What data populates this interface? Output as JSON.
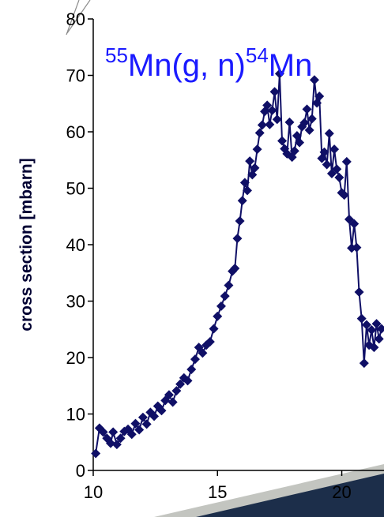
{
  "chart_data": {
    "type": "line",
    "title_parts": {
      "a_mass": "55",
      "a_body": "Mn(g, n)",
      "b_mass": "54",
      "b_body": "Mn"
    },
    "xlabel": "",
    "ylabel": "cross section [mbarn]",
    "xlim": [
      10,
      21.7
    ],
    "ylim": [
      0,
      80
    ],
    "x_ticks": [
      "10",
      "15",
      "20"
    ],
    "y_ticks": [
      "0",
      "10",
      "20",
      "30",
      "40",
      "50",
      "60",
      "70",
      "80"
    ],
    "grid": false,
    "legend": "none",
    "colors": {
      "series": "#0f0f66",
      "title": "#1a1aff",
      "decor_dark": "#1c2e4a",
      "decor_light": "#c3c5c0"
    },
    "series": [
      {
        "marker": "diamond",
        "x": [
          10.1,
          10.25,
          10.4,
          10.55,
          10.7,
          10.8,
          10.95,
          11.1,
          11.25,
          11.4,
          11.55,
          11.7,
          11.85,
          12.0,
          12.15,
          12.3,
          12.45,
          12.6,
          12.75,
          12.9,
          13.05,
          13.2,
          13.35,
          13.5,
          13.65,
          13.8,
          13.95,
          14.1,
          14.25,
          14.4,
          14.55,
          14.7,
          14.85,
          15.0,
          15.15,
          15.3,
          15.45,
          15.6,
          15.7,
          15.8,
          15.9,
          16.0,
          16.1,
          16.2,
          16.3,
          16.4,
          16.5,
          16.6,
          16.7,
          16.8,
          16.9,
          17.0,
          17.1,
          17.2,
          17.3,
          17.4,
          17.5,
          17.6,
          17.7,
          17.8,
          17.9,
          18.0,
          18.1,
          18.2,
          18.3,
          18.4,
          18.5,
          18.6,
          18.7,
          18.8,
          18.9,
          19.0,
          19.1,
          19.2,
          19.3,
          19.4,
          19.5,
          19.6,
          19.7,
          19.8,
          19.9,
          20.0,
          20.1,
          20.2,
          20.3,
          20.4,
          20.5,
          20.6,
          20.7,
          20.8,
          20.9,
          21.0,
          21.1,
          21.2,
          21.3,
          21.4,
          21.5,
          21.6
        ],
        "y": [
          3.0,
          7.5,
          6.8,
          5.7,
          4.8,
          6.8,
          4.6,
          5.7,
          6.9,
          7.3,
          6.4,
          8.3,
          7.2,
          9.4,
          8.2,
          10.3,
          9.6,
          11.4,
          10.6,
          12.4,
          13.4,
          12.1,
          14.1,
          15.3,
          16.4,
          15.9,
          17.9,
          19.7,
          21.8,
          20.8,
          22.2,
          22.8,
          25.1,
          27.3,
          29.1,
          30.9,
          32.8,
          35.3,
          35.8,
          41.1,
          44.2,
          47.8,
          51.0,
          49.6,
          54.8,
          52.4,
          53.6,
          56.9,
          59.8,
          61.2,
          63.6,
          64.7,
          61.3,
          63.8,
          67.1,
          62.2,
          70.3,
          58.4,
          57.0,
          56.1,
          61.7,
          55.5,
          56.6,
          59.3,
          58.1,
          60.9,
          61.6,
          64.0,
          60.3,
          62.3,
          69.2,
          65.1,
          66.3,
          55.3,
          56.4,
          54.2,
          59.7,
          52.6,
          56.9,
          53.4,
          51.9,
          49.2,
          48.8,
          54.7,
          44.5,
          39.4,
          43.7,
          39.5,
          31.6,
          26.9,
          19.0,
          25.8,
          22.2,
          24.9,
          21.8,
          26.0,
          23.3,
          25.1
        ]
      }
    ]
  }
}
